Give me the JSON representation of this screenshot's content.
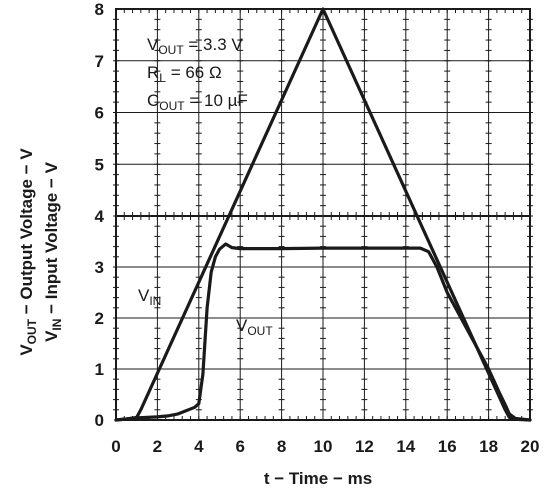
{
  "colors": {
    "trace": "#1a1a1a",
    "frame": "#1a1a1a",
    "grid": "#1a1a1a",
    "background": "#ffffff"
  },
  "chart_data": {
    "type": "line",
    "xlabel": "t − Time − ms",
    "ylabel_line1": {
      "main": "V",
      "sub": "OUT",
      "rest": " − Output Voltage − V"
    },
    "ylabel_line2": {
      "main": "V",
      "sub": "IN",
      "rest": " − Input Voltage − V"
    },
    "grid": true,
    "xlim": [
      0,
      20
    ],
    "x_ticks": [
      "0",
      "2",
      "4",
      "6",
      "8",
      "10",
      "12",
      "14",
      "16",
      "18",
      "20"
    ],
    "upper_panel": {
      "ylim": [
        4,
        8
      ],
      "y_ticks": [
        "8",
        "7",
        "6",
        "5",
        "4"
      ]
    },
    "lower_panel": {
      "ylim": [
        0,
        4
      ],
      "y_ticks": [
        "3",
        "2",
        "1",
        "0"
      ]
    },
    "conditions": [
      {
        "main": "V",
        "sub": "OUT",
        "rest": " = 3.3 V"
      },
      {
        "main": "R",
        "sub": "L",
        "rest": " = 66 Ω"
      },
      {
        "main": "C",
        "sub": "OUT",
        "rest": " = 10 µF"
      }
    ],
    "series": [
      {
        "name": {
          "main": "V",
          "sub": "IN"
        },
        "points": [
          [
            0,
            0
          ],
          [
            0.5,
            0.02
          ],
          [
            1,
            0.05
          ],
          [
            1.2,
            0.2
          ],
          [
            10,
            8
          ],
          [
            18.8,
            0.2
          ],
          [
            19,
            0.05
          ],
          [
            19.5,
            0.01
          ],
          [
            20,
            0
          ]
        ]
      },
      {
        "name": {
          "main": "V",
          "sub": "OUT"
        },
        "points": [
          [
            0,
            0
          ],
          [
            0.5,
            0.02
          ],
          [
            1,
            0.04
          ],
          [
            1.5,
            0.05
          ],
          [
            2,
            0.06
          ],
          [
            2.5,
            0.08
          ],
          [
            3,
            0.12
          ],
          [
            3.5,
            0.2
          ],
          [
            3.8,
            0.25
          ],
          [
            4.0,
            0.32
          ],
          [
            4.2,
            0.9
          ],
          [
            4.4,
            2.2
          ],
          [
            4.6,
            2.9
          ],
          [
            4.8,
            3.2
          ],
          [
            5.0,
            3.35
          ],
          [
            5.3,
            3.45
          ],
          [
            5.6,
            3.38
          ],
          [
            6,
            3.36
          ],
          [
            8,
            3.36
          ],
          [
            10,
            3.37
          ],
          [
            12,
            3.37
          ],
          [
            14,
            3.37
          ],
          [
            14.7,
            3.37
          ],
          [
            15.1,
            3.3
          ],
          [
            15.5,
            3.0
          ],
          [
            16,
            2.5
          ],
          [
            17,
            1.75
          ],
          [
            18,
            1.0
          ],
          [
            18.5,
            0.55
          ],
          [
            18.8,
            0.3
          ],
          [
            19,
            0.12
          ],
          [
            19.3,
            0.03
          ],
          [
            20,
            0
          ]
        ]
      }
    ]
  }
}
